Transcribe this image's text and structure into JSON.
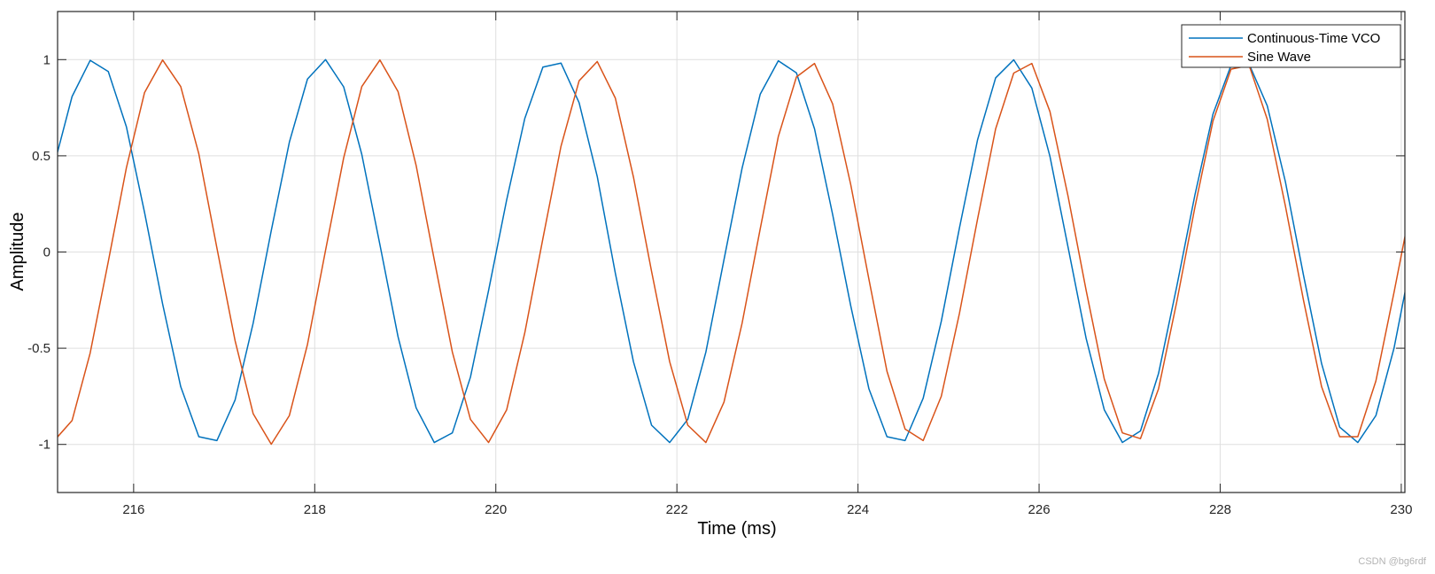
{
  "chart_data": {
    "type": "line",
    "xlabel": "Time (ms)",
    "ylabel": "Amplitude",
    "xlim": [
      215.16,
      230.04
    ],
    "ylim": [
      -1.25,
      1.25
    ],
    "xticks": [
      216,
      218,
      220,
      222,
      224,
      226,
      228,
      230
    ],
    "yticks": [
      -1,
      -0.5,
      0,
      0.5,
      1
    ],
    "ytick_labels": [
      "-1",
      "-0.5",
      "0",
      "0.5",
      "1"
    ],
    "grid": true,
    "legend_position": "top-right",
    "series": [
      {
        "name": "Continuous-Time VCO",
        "color": "#0072BD",
        "x": [
          215.12,
          215.32,
          215.52,
          215.72,
          215.92,
          216.12,
          216.32,
          216.52,
          216.72,
          216.92,
          217.12,
          217.32,
          217.52,
          217.72,
          217.92,
          218.12,
          218.32,
          218.52,
          218.72,
          218.92,
          219.12,
          219.32,
          219.52,
          219.72,
          219.92,
          220.12,
          220.32,
          220.52,
          220.72,
          220.92,
          221.12,
          221.32,
          221.52,
          221.72,
          221.92,
          222.12,
          222.32,
          222.52,
          222.72,
          222.92,
          223.12,
          223.32,
          223.52,
          223.72,
          223.92,
          224.12,
          224.32,
          224.52,
          224.72,
          224.92,
          225.12,
          225.32,
          225.52,
          225.72,
          225.92,
          226.12,
          226.32,
          226.52,
          226.72,
          226.92,
          227.12,
          227.32,
          227.52,
          227.72,
          227.92,
          228.12,
          228.32,
          228.52,
          228.72,
          228.92,
          229.12,
          229.32,
          229.52,
          229.72,
          229.92,
          230.12
        ],
        "y": [
          0.448,
          0.808,
          0.996,
          0.938,
          0.651,
          0.207,
          -0.27,
          -0.7,
          -0.96,
          -0.98,
          -0.77,
          -0.37,
          0.111,
          0.571,
          0.899,
          1.0,
          0.858,
          0.507,
          0.038,
          -0.44,
          -0.81,
          -0.99,
          -0.94,
          -0.65,
          -0.2,
          0.271,
          0.694,
          0.961,
          0.982,
          0.776,
          0.393,
          -0.11,
          -0.57,
          -0.9,
          -0.99,
          -0.87,
          -0.52,
          -0.04,
          0.436,
          0.82,
          0.994,
          0.931,
          0.64,
          0.195,
          -0.28,
          -0.71,
          -0.96,
          -0.98,
          -0.76,
          -0.36,
          0.124,
          0.582,
          0.905,
          0.999,
          0.852,
          0.497,
          0.025,
          -0.45,
          -0.82,
          -0.99,
          -0.93,
          -0.63,
          -0.18,
          0.294,
          0.716,
          0.97,
          0.976,
          0.76,
          0.366,
          -0.12,
          -0.58,
          -0.91,
          -0.99,
          -0.85,
          -0.5,
          -0.02
        ]
      },
      {
        "name": "Sine Wave",
        "color": "#D95319",
        "x": [
          215.12,
          215.32,
          215.52,
          215.72,
          215.92,
          216.12,
          216.32,
          216.52,
          216.72,
          216.92,
          217.12,
          217.32,
          217.52,
          217.72,
          217.92,
          218.12,
          218.32,
          218.52,
          218.72,
          218.92,
          219.12,
          219.32,
          219.52,
          219.72,
          219.92,
          220.12,
          220.32,
          220.52,
          220.72,
          220.92,
          221.12,
          221.32,
          221.52,
          221.72,
          221.92,
          222.12,
          222.32,
          222.52,
          222.72,
          222.92,
          223.12,
          223.32,
          223.52,
          223.72,
          223.92,
          224.12,
          224.32,
          224.52,
          224.72,
          224.92,
          225.12,
          225.32,
          225.52,
          225.72,
          225.92,
          226.12,
          226.32,
          226.52,
          226.72,
          226.92,
          227.12,
          227.32,
          227.52,
          227.72,
          227.92,
          228.12,
          228.32,
          228.52,
          228.72,
          228.92,
          229.12,
          229.32,
          229.52,
          229.72,
          229.92,
          230.12
        ],
        "y": [
          -0.982,
          -0.876,
          -0.525,
          -0.05,
          0.438,
          0.828,
          0.998,
          0.86,
          0.51,
          0.02,
          -0.46,
          -0.84,
          -0.999,
          -0.85,
          -0.48,
          0.01,
          0.49,
          0.86,
          0.998,
          0.834,
          0.45,
          -0.04,
          -0.52,
          -0.87,
          -0.99,
          -0.82,
          -0.42,
          0.07,
          0.55,
          0.89,
          0.99,
          0.8,
          0.39,
          -0.1,
          -0.57,
          -0.9,
          -0.99,
          -0.78,
          -0.37,
          0.12,
          0.6,
          0.91,
          0.98,
          0.77,
          0.35,
          -0.14,
          -0.62,
          -0.92,
          -0.98,
          -0.75,
          -0.32,
          0.17,
          0.64,
          0.93,
          0.98,
          0.73,
          0.29,
          -0.2,
          -0.66,
          -0.94,
          -0.97,
          -0.71,
          -0.26,
          0.23,
          0.68,
          0.95,
          0.97,
          0.69,
          0.24,
          -0.25,
          -0.7,
          -0.96,
          -0.96,
          -0.67,
          -0.21,
          0.27
        ]
      }
    ]
  },
  "watermark": "CSDN @bg6rdf"
}
